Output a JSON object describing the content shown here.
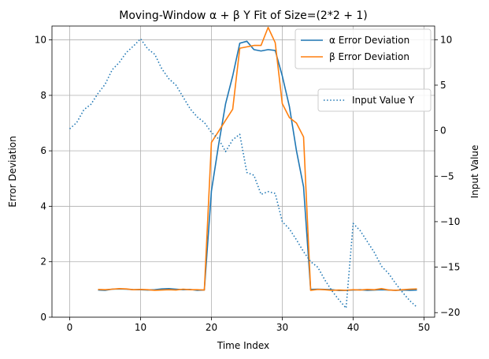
{
  "chart_data": {
    "type": "line",
    "title": "Moving-Window α + β Y Fit of Size=(2*2 + 1)",
    "xlabel": "Time Index",
    "ylabel": "Error Deviation",
    "y2label": "Input Value",
    "xlim": [
      -2.5,
      51.5
    ],
    "ylim": [
      0,
      10.5
    ],
    "y2lim": [
      -20.5,
      11.5
    ],
    "xticks": [
      0,
      10,
      20,
      30,
      40,
      50
    ],
    "yticks": [
      0,
      2,
      4,
      6,
      8,
      10
    ],
    "y2ticks": [
      -20,
      -15,
      -10,
      -5,
      0,
      5,
      10
    ],
    "grid": true,
    "series": [
      {
        "name": "α Error Deviation",
        "axis": "left",
        "color": "#1f77b4",
        "style": "solid",
        "x": [
          4,
          5,
          6,
          7,
          8,
          9,
          10,
          11,
          12,
          13,
          14,
          15,
          16,
          17,
          18,
          19,
          20,
          21,
          22,
          23,
          24,
          25,
          26,
          27,
          28,
          29,
          30,
          31,
          32,
          33,
          34,
          35,
          36,
          37,
          38,
          39,
          40,
          41,
          42,
          43,
          44,
          45,
          46,
          47,
          48,
          49
        ],
        "values": [
          0.98,
          0.97,
          1.01,
          1.02,
          1.01,
          0.99,
          0.99,
          0.98,
          0.99,
          1.02,
          1.03,
          1.01,
          0.99,
          1.0,
          0.97,
          0.98,
          4.55,
          6.2,
          7.7,
          8.7,
          9.88,
          9.95,
          9.65,
          9.6,
          9.65,
          9.62,
          8.7,
          7.6,
          6.0,
          4.7,
          1.0,
          1.01,
          1.0,
          0.99,
          0.96,
          0.97,
          0.98,
          0.99,
          0.97,
          0.98,
          0.99,
          0.98,
          0.97,
          0.98,
          0.97,
          0.98
        ]
      },
      {
        "name": "β Error Deviation",
        "axis": "left",
        "color": "#ff7f0e",
        "style": "solid",
        "x": [
          4,
          5,
          6,
          7,
          8,
          9,
          10,
          11,
          12,
          13,
          14,
          15,
          16,
          17,
          18,
          19,
          20,
          21,
          22,
          23,
          24,
          25,
          26,
          27,
          28,
          29,
          30,
          31,
          32,
          33,
          34,
          35,
          36,
          37,
          38,
          39,
          40,
          41,
          42,
          43,
          44,
          45,
          46,
          47,
          48,
          49
        ],
        "values": [
          1.0,
          0.99,
          1.01,
          1.03,
          1.02,
          0.99,
          1.0,
          0.99,
          0.97,
          0.98,
          0.99,
          0.98,
          1.01,
          0.99,
          0.99,
          0.98,
          6.3,
          6.7,
          7.1,
          7.5,
          9.7,
          9.75,
          9.8,
          9.8,
          10.45,
          9.9,
          7.7,
          7.2,
          7.0,
          6.5,
          0.97,
          1.0,
          0.99,
          0.97,
          0.98,
          0.97,
          0.99,
          0.98,
          1.0,
          0.99,
          1.03,
          0.98,
          0.97,
          0.99,
          1.01,
          1.02
        ]
      },
      {
        "name": "Input Value Y",
        "axis": "right",
        "color": "#1f77b4",
        "style": "dotted",
        "x": [
          0,
          1,
          2,
          3,
          4,
          5,
          6,
          7,
          8,
          9,
          10,
          11,
          12,
          13,
          14,
          15,
          16,
          17,
          18,
          19,
          20,
          21,
          22,
          23,
          24,
          25,
          26,
          27,
          28,
          29,
          30,
          31,
          32,
          33,
          34,
          35,
          36,
          37,
          38,
          39,
          40,
          41,
          42,
          43,
          44,
          45,
          46,
          47,
          48,
          49
        ],
        "values": [
          0.2,
          0.9,
          2.3,
          2.9,
          4.1,
          5.1,
          6.7,
          7.5,
          8.6,
          9.3,
          10.1,
          9.0,
          8.4,
          6.8,
          5.7,
          5.0,
          3.7,
          2.4,
          1.5,
          0.9,
          -0.2,
          -0.9,
          -2.3,
          -1.0,
          -0.4,
          -4.6,
          -4.9,
          -7.0,
          -6.7,
          -6.9,
          -10.0,
          -10.8,
          -12.0,
          -13.3,
          -14.4,
          -15.0,
          -16.4,
          -17.6,
          -18.6,
          -19.5,
          -10.2,
          -11.0,
          -12.2,
          -13.4,
          -14.9,
          -15.7,
          -16.8,
          -17.8,
          -18.7,
          -19.4
        ]
      }
    ],
    "legends": [
      {
        "placement": "top-right",
        "entries": [
          "α Error Deviation",
          "β Error Deviation"
        ]
      },
      {
        "placement": "center-right",
        "entries": [
          "Input Value Y"
        ]
      }
    ]
  }
}
